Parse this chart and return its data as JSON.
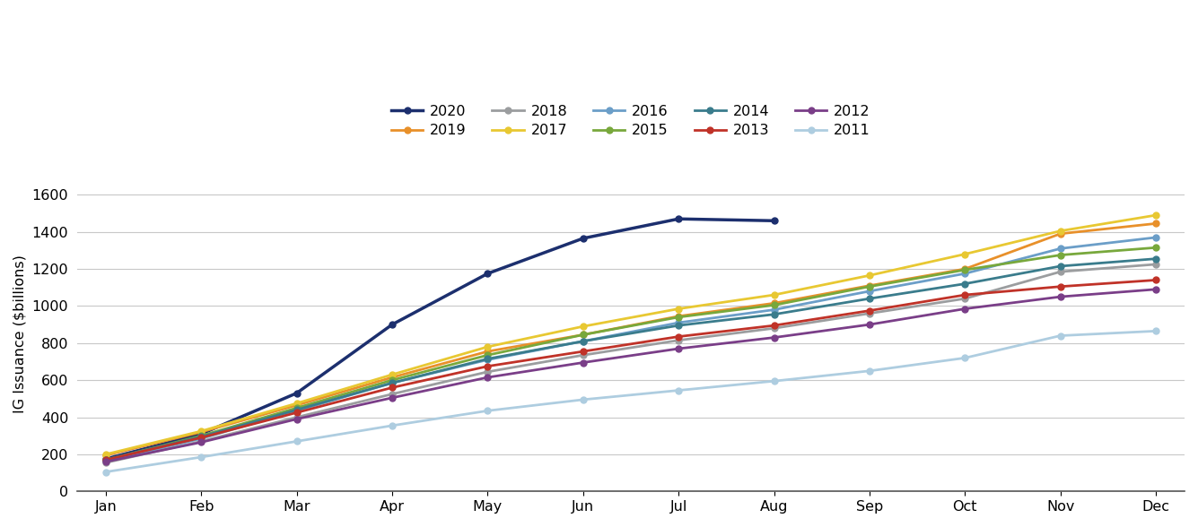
{
  "months": [
    "Jan",
    "Feb",
    "Mar",
    "Apr",
    "May",
    "Jun",
    "Jul",
    "Aug",
    "Sep",
    "Oct",
    "Nov",
    "Dec"
  ],
  "series": {
    "2020": [
      175,
      310,
      530,
      900,
      1175,
      1365,
      1470,
      1460,
      null,
      null,
      null,
      null
    ],
    "2019": [
      195,
      320,
      465,
      615,
      755,
      845,
      945,
      1015,
      1110,
      1200,
      1390,
      1445
    ],
    "2018": [
      155,
      270,
      400,
      525,
      645,
      735,
      815,
      880,
      960,
      1040,
      1185,
      1225
    ],
    "2017": [
      200,
      325,
      475,
      630,
      780,
      890,
      985,
      1060,
      1165,
      1280,
      1405,
      1490
    ],
    "2016": [
      165,
      285,
      435,
      585,
      710,
      810,
      910,
      980,
      1080,
      1175,
      1310,
      1370
    ],
    "2015": [
      170,
      300,
      450,
      600,
      735,
      845,
      940,
      1005,
      1105,
      1195,
      1275,
      1315
    ],
    "2014": [
      170,
      295,
      440,
      585,
      715,
      810,
      895,
      955,
      1040,
      1120,
      1215,
      1255
    ],
    "2013": [
      170,
      290,
      425,
      560,
      675,
      755,
      835,
      895,
      975,
      1060,
      1105,
      1140
    ],
    "2012": [
      160,
      265,
      390,
      505,
      615,
      695,
      770,
      830,
      900,
      985,
      1050,
      1090
    ],
    "2011": [
      105,
      185,
      270,
      355,
      435,
      495,
      545,
      595,
      650,
      720,
      840,
      865
    ]
  },
  "colors": {
    "2020": "#1c2f6e",
    "2019": "#e8902a",
    "2018": "#9b9d9f",
    "2017": "#e8c832",
    "2016": "#6b9ec8",
    "2015": "#78a83c",
    "2014": "#3a7c8c",
    "2013": "#c03228",
    "2012": "#7a3e88",
    "2011": "#aecde0"
  },
  "ylabel": "IG Issuance ($billions)",
  "ylim": [
    0,
    1700
  ],
  "yticks": [
    0,
    200,
    400,
    600,
    800,
    1000,
    1200,
    1400,
    1600
  ],
  "legend_row1": [
    "2020",
    "2019",
    "2018",
    "2017",
    "2016"
  ],
  "legend_row2": [
    "2015",
    "2014",
    "2013",
    "2012",
    "2011"
  ],
  "bg_color": "#ffffff",
  "grid_color": "#c8c8c8",
  "marker_size": 5,
  "linewidth": 2.0,
  "linewidth_2020": 2.5
}
